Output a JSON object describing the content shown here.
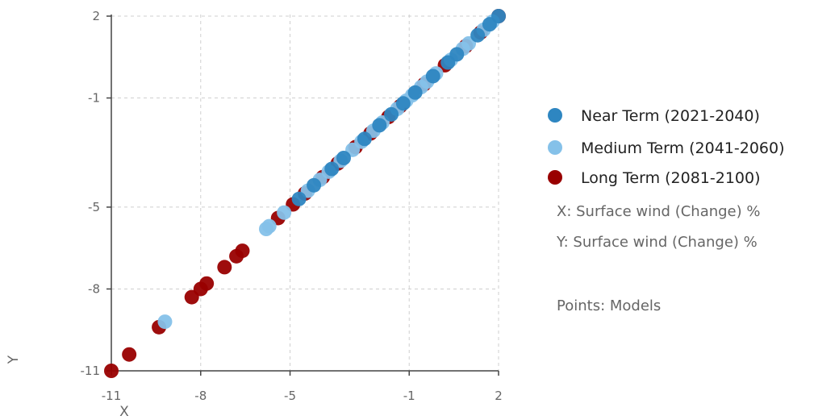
{
  "chart_data": {
    "type": "scatter",
    "title": "",
    "xlabel": "X",
    "ylabel": "Y",
    "xlim": [
      -11,
      2
    ],
    "ylim": [
      -11,
      2
    ],
    "xticks": [
      -11,
      -8,
      -5,
      -1,
      2
    ],
    "yticks": [
      2,
      -1,
      -5,
      -8,
      -11
    ],
    "grid": true,
    "legend_position": "right",
    "series": [
      {
        "name": "Near Term (2021-2040)",
        "color": "#2e86c1",
        "points": [
          [
            2.0,
            2.0
          ],
          [
            1.7,
            1.7
          ],
          [
            1.3,
            1.3
          ],
          [
            0.6,
            0.6
          ],
          [
            0.3,
            0.3
          ],
          [
            -0.2,
            -0.2
          ],
          [
            -0.8,
            -0.8
          ],
          [
            -1.2,
            -1.2
          ],
          [
            -1.6,
            -1.6
          ],
          [
            -2.0,
            -2.0
          ],
          [
            -2.5,
            -2.5
          ],
          [
            -3.2,
            -3.2
          ],
          [
            -3.6,
            -3.6
          ],
          [
            -4.2,
            -4.2
          ],
          [
            -4.7,
            -4.7
          ]
        ]
      },
      {
        "name": "Medium Term (2041-2060)",
        "color": "#85c1e9",
        "points": [
          [
            1.8,
            1.8
          ],
          [
            1.5,
            1.5
          ],
          [
            1.0,
            1.0
          ],
          [
            0.8,
            0.8
          ],
          [
            0.4,
            0.4
          ],
          [
            -0.1,
            -0.1
          ],
          [
            -0.4,
            -0.4
          ],
          [
            -0.6,
            -0.6
          ],
          [
            -0.9,
            -0.9
          ],
          [
            -1.1,
            -1.1
          ],
          [
            -1.4,
            -1.4
          ],
          [
            -1.9,
            -1.9
          ],
          [
            -2.2,
            -2.2
          ],
          [
            -2.6,
            -2.6
          ],
          [
            -2.9,
            -2.9
          ],
          [
            -3.3,
            -3.3
          ],
          [
            -3.7,
            -3.7
          ],
          [
            -4.0,
            -4.0
          ],
          [
            -4.4,
            -4.4
          ],
          [
            -5.2,
            -5.2
          ],
          [
            -5.7,
            -5.7
          ],
          [
            -5.8,
            -5.8
          ],
          [
            -9.2,
            -9.2
          ]
        ]
      },
      {
        "name": "Long Term (2081-2100)",
        "color": "#990000",
        "points": [
          [
            2.0,
            2.0
          ],
          [
            1.4,
            1.4
          ],
          [
            0.9,
            0.9
          ],
          [
            0.2,
            0.2
          ],
          [
            -0.5,
            -0.5
          ],
          [
            -1.3,
            -1.3
          ],
          [
            -1.7,
            -1.7
          ],
          [
            -2.3,
            -2.3
          ],
          [
            -2.8,
            -2.8
          ],
          [
            -3.4,
            -3.4
          ],
          [
            -3.9,
            -3.9
          ],
          [
            -4.5,
            -4.5
          ],
          [
            -4.9,
            -4.9
          ],
          [
            -5.4,
            -5.4
          ],
          [
            -6.6,
            -6.6
          ],
          [
            -6.8,
            -6.8
          ],
          [
            -7.2,
            -7.2
          ],
          [
            -7.8,
            -7.8
          ],
          [
            -8.0,
            -8.0
          ],
          [
            -8.3,
            -8.3
          ],
          [
            -9.4,
            -9.4
          ],
          [
            -10.4,
            -10.4
          ],
          [
            -11.0,
            -11.0
          ]
        ]
      }
    ],
    "notes": [
      "X: Surface wind (Change) %",
      "Y: Surface wind (Change) %",
      "Points: Models"
    ]
  }
}
